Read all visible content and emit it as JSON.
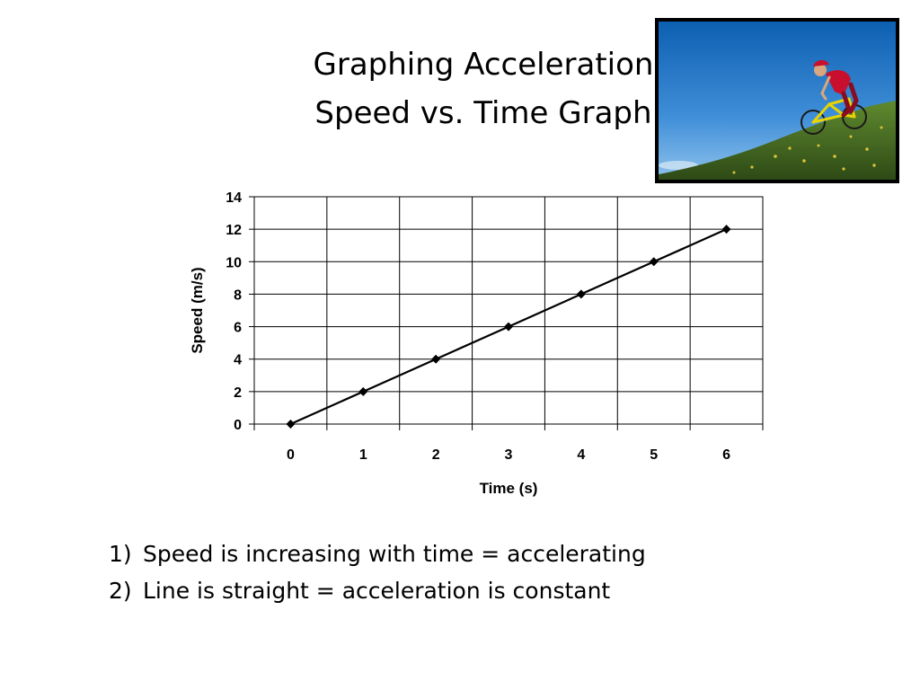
{
  "slide": {
    "title_line1": "Graphing Acceleration",
    "title_line2": "Speed vs. Time Graph",
    "photo_icon": "mountain-biker-photo",
    "notes": [
      {
        "number": "1)",
        "text": "Speed is increasing with time = accelerating"
      },
      {
        "number": "2)",
        "text": "Line is straight = acceleration is constant"
      }
    ]
  },
  "chart_data": {
    "type": "line",
    "xlabel": "Time (s)",
    "ylabel": "Speed (m/s)",
    "x": [
      0,
      1,
      2,
      3,
      4,
      5,
      6
    ],
    "series": [
      {
        "values": [
          0,
          2,
          4,
          6,
          8,
          10,
          12
        ],
        "color": "#000000",
        "marker": "diamond"
      }
    ],
    "xlim": [
      -0.5,
      6.5
    ],
    "ylim": [
      0,
      14
    ],
    "xticks": [
      "0",
      "1",
      "2",
      "3",
      "4",
      "5",
      "6"
    ],
    "yticks": [
      "0",
      "2",
      "4",
      "6",
      "8",
      "10",
      "12",
      "14"
    ],
    "grid": true,
    "legend": "none"
  }
}
